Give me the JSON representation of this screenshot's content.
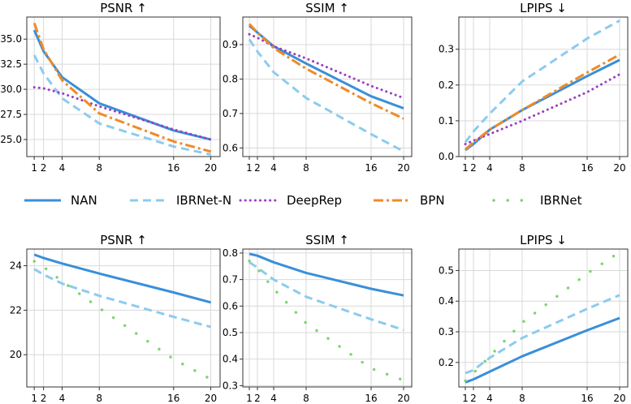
{
  "series_styles": {
    "NAN": {
      "color": "#3a8fd9",
      "dash": "",
      "width": 3.0,
      "cap": "butt"
    },
    "IBRNet-N": {
      "color": "#8ccbef",
      "dash": "10,6",
      "width": 3.0,
      "cap": "butt"
    },
    "DeepRep": {
      "color": "#9a3fbf",
      "dash": "0.1,6",
      "width": 3.0,
      "cap": "round"
    },
    "BPN": {
      "color": "#ef8a27",
      "dash": "12,4,3,4",
      "width": 3.0,
      "cap": "butt"
    },
    "IBRNet": {
      "color": "#7ad66a",
      "dash": "0.1,17",
      "width": 3.4,
      "cap": "round"
    }
  },
  "legend": {
    "items": [
      {
        "name": "NAN",
        "label": "NAN"
      },
      {
        "name": "IBRNet-N",
        "label": "IBRNet-N"
      },
      {
        "name": "DeepRep",
        "label": "DeepRep"
      },
      {
        "name": "BPN",
        "label": "BPN"
      },
      {
        "name": "IBRNet",
        "label": "IBRNet"
      }
    ]
  },
  "chart_data": [
    {
      "type": "line",
      "title": "PSNR ↑",
      "x": [
        1,
        2,
        4,
        8,
        16,
        20
      ],
      "xticks": [
        1,
        2,
        4,
        8,
        16,
        20
      ],
      "xticklabels": [
        "1",
        "2",
        "4",
        "8",
        "16",
        "20"
      ],
      "xlim": [
        0.2,
        21
      ],
      "ylim": [
        23.3,
        37.2
      ],
      "yticks": [
        25.0,
        27.5,
        30.0,
        32.5,
        35.0
      ],
      "yticklabels": [
        "25.0",
        "27.5",
        "30.0",
        "32.5",
        "35.0"
      ],
      "series": [
        {
          "name": "NAN",
          "values": [
            35.9,
            33.8,
            31.2,
            28.6,
            25.9,
            25.0
          ]
        },
        {
          "name": "IBRNet-N",
          "values": [
            33.4,
            31.6,
            29.1,
            26.6,
            24.3,
            23.5
          ]
        },
        {
          "name": "DeepRep",
          "values": [
            30.2,
            30.1,
            29.6,
            28.3,
            26.0,
            25.0
          ]
        },
        {
          "name": "BPN",
          "values": [
            36.6,
            34.0,
            30.9,
            27.6,
            24.8,
            23.8
          ]
        }
      ]
    },
    {
      "type": "line",
      "title": "SSIM ↑",
      "x": [
        1,
        2,
        4,
        8,
        16,
        20
      ],
      "xticks": [
        1,
        2,
        4,
        8,
        16,
        20
      ],
      "xticklabels": [
        "1",
        "2",
        "4",
        "8",
        "16",
        "20"
      ],
      "xlim": [
        0.2,
        21
      ],
      "ylim": [
        0.575,
        0.98
      ],
      "yticks": [
        0.6,
        0.7,
        0.8,
        0.9
      ],
      "yticklabels": [
        "0.6",
        "0.7",
        "0.8",
        "0.9"
      ],
      "series": [
        {
          "name": "NAN",
          "values": [
            0.955,
            0.935,
            0.895,
            0.845,
            0.75,
            0.715
          ]
        },
        {
          "name": "IBRNet-N",
          "values": [
            0.915,
            0.88,
            0.82,
            0.745,
            0.64,
            0.59
          ]
        },
        {
          "name": "DeepRep",
          "values": [
            0.93,
            0.92,
            0.895,
            0.86,
            0.78,
            0.745
          ]
        },
        {
          "name": "BPN",
          "values": [
            0.96,
            0.935,
            0.89,
            0.83,
            0.73,
            0.685
          ]
        }
      ]
    },
    {
      "type": "line",
      "title": "LPIPS ↓",
      "x": [
        1,
        2,
        4,
        8,
        16,
        20
      ],
      "xticks": [
        1,
        2,
        4,
        8,
        16,
        20
      ],
      "xticklabels": [
        "1",
        "2",
        "4",
        "8",
        "16",
        "20"
      ],
      "xlim": [
        0.2,
        21
      ],
      "ylim": [
        0.0,
        0.39
      ],
      "yticks": [
        0.0,
        0.1,
        0.2,
        0.3
      ],
      "yticklabels": [
        "0.0",
        "0.1",
        "0.2",
        "0.3"
      ],
      "series": [
        {
          "name": "NAN",
          "values": [
            0.018,
            0.035,
            0.075,
            0.13,
            0.225,
            0.27
          ]
        },
        {
          "name": "IBRNet-N",
          "values": [
            0.04,
            0.07,
            0.12,
            0.21,
            0.33,
            0.38
          ]
        },
        {
          "name": "DeepRep",
          "values": [
            0.035,
            0.045,
            0.063,
            0.1,
            0.18,
            0.23
          ]
        },
        {
          "name": "BPN",
          "values": [
            0.02,
            0.04,
            0.075,
            0.13,
            0.235,
            0.285
          ]
        }
      ]
    },
    {
      "type": "line",
      "title": "PSNR ↑",
      "x": [
        1,
        2,
        4,
        8,
        16,
        20
      ],
      "xticks": [
        1,
        2,
        4,
        8,
        16,
        20
      ],
      "xticklabels": [
        "1",
        "2",
        "4",
        "8",
        "16",
        "20"
      ],
      "xlim": [
        0.2,
        21
      ],
      "ylim": [
        18.55,
        24.75
      ],
      "yticks": [
        20,
        22,
        24
      ],
      "yticklabels": [
        "20",
        "22",
        "24"
      ],
      "series": [
        {
          "name": "NAN",
          "values": [
            24.5,
            24.35,
            24.1,
            23.65,
            22.8,
            22.35
          ]
        },
        {
          "name": "IBRNet-N",
          "values": [
            23.85,
            23.6,
            23.2,
            22.65,
            21.7,
            21.25
          ]
        },
        {
          "name": "IBRNet",
          "values": [
            24.2,
            23.95,
            23.3,
            22.1,
            19.8,
            18.9
          ]
        }
      ]
    },
    {
      "type": "line",
      "title": "SSIM ↑",
      "x": [
        1,
        2,
        4,
        8,
        16,
        20
      ],
      "xticks": [
        1,
        2,
        4,
        8,
        16,
        20
      ],
      "xticklabels": [
        "1",
        "2",
        "4",
        "8",
        "16",
        "20"
      ],
      "xlim": [
        0.2,
        21
      ],
      "ylim": [
        0.295,
        0.815
      ],
      "yticks": [
        0.3,
        0.4,
        0.5,
        0.6,
        0.7,
        0.8
      ],
      "yticklabels": [
        "0.3",
        "0.4",
        "0.5",
        "0.6",
        "0.7",
        "0.8"
      ],
      "series": [
        {
          "name": "NAN",
          "values": [
            0.797,
            0.79,
            0.765,
            0.725,
            0.665,
            0.64
          ]
        },
        {
          "name": "IBRNet-N",
          "values": [
            0.765,
            0.745,
            0.7,
            0.635,
            0.55,
            0.51
          ]
        },
        {
          "name": "IBRNet",
          "values": [
            0.77,
            0.74,
            0.665,
            0.535,
            0.365,
            0.32
          ]
        }
      ]
    },
    {
      "type": "line",
      "title": "LPIPS ↓",
      "x": [
        1,
        2,
        4,
        8,
        16,
        20
      ],
      "xticks": [
        1,
        2,
        4,
        8,
        16,
        20
      ],
      "xticklabels": [
        "1",
        "2",
        "4",
        "8",
        "16",
        "20"
      ],
      "xlim": [
        0.2,
        21
      ],
      "ylim": [
        0.12,
        0.57
      ],
      "yticks": [
        0.2,
        0.3,
        0.4,
        0.5
      ],
      "yticklabels": [
        "0.2",
        "0.3",
        "0.4",
        "0.5"
      ],
      "series": [
        {
          "name": "NAN",
          "values": [
            0.135,
            0.145,
            0.17,
            0.22,
            0.305,
            0.345
          ]
        },
        {
          "name": "IBRNet-N",
          "values": [
            0.165,
            0.175,
            0.215,
            0.28,
            0.375,
            0.42
          ]
        },
        {
          "name": "IBRNet",
          "values": [
            0.14,
            0.165,
            0.22,
            0.33,
            0.49,
            0.56
          ]
        }
      ]
    }
  ]
}
